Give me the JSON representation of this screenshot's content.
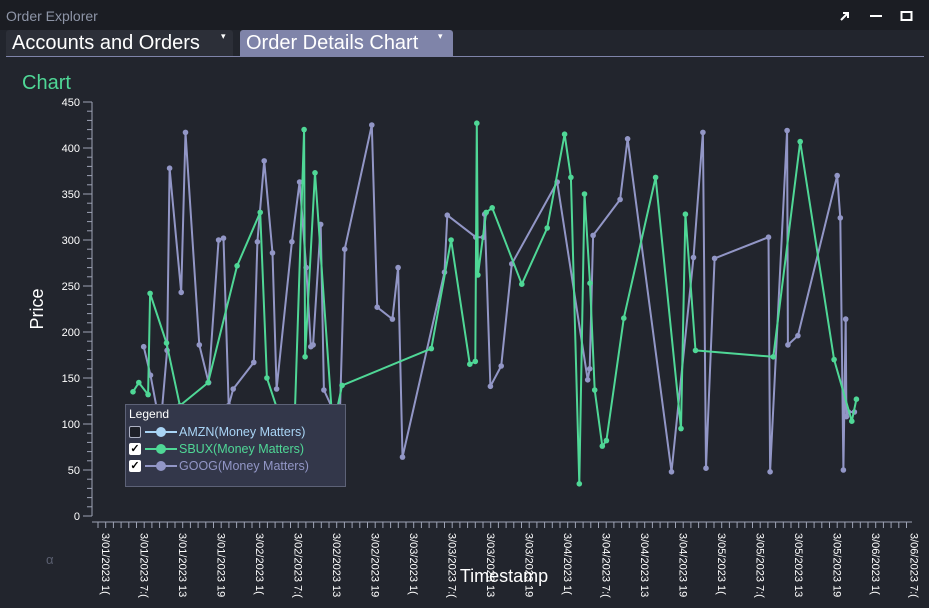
{
  "window": {
    "title": "Order Explorer"
  },
  "window_controls": {
    "popout_icon": "arrow-up-right-icon",
    "minimize_icon": "minimize-icon",
    "maximize_icon": "maximize-icon"
  },
  "tabs": [
    {
      "label": "Accounts and Orders",
      "caret": "▾",
      "active": false
    },
    {
      "label": "Order Details Chart",
      "caret": "▾",
      "active": true
    }
  ],
  "panel": {
    "title": "Chart",
    "title_color": "#4fd796",
    "corner_glyph": "α"
  },
  "legend": {
    "title": "Legend",
    "items": [
      {
        "label": "AMZN(Money Matters)",
        "checked": false,
        "color": "#a9d4f5"
      },
      {
        "label": "SBUX(Money Matters)",
        "checked": true,
        "color": "#4fd796"
      },
      {
        "label": "GOOG(Money Matters)",
        "checked": true,
        "color": "#9296c6"
      }
    ]
  },
  "chart_data": {
    "type": "line",
    "xlabel": "Timestamp",
    "ylabel": "Price",
    "ylim": [
      0,
      450
    ],
    "yticks": [
      0,
      50,
      100,
      150,
      200,
      250,
      300,
      350,
      400,
      450
    ],
    "xlim": [
      0,
      5
    ],
    "xtick_labels": [
      "3/01/2023 1(",
      "3/01/2023 7:(",
      "3/01/2023 13",
      "3/01/2023 19",
      "3/02/2023 1(",
      "3/02/2023 7:(",
      "3/02/2023 13",
      "3/02/2023 19",
      "3/03/2023 1(",
      "3/03/2023 7:(",
      "3/03/2023 13",
      "3/03/2023 19",
      "3/04/2023 1(",
      "3/04/2023 7:(",
      "3/04/2023 13",
      "3/04/2023 19",
      "3/05/2023 1(",
      "3/05/2023 7:(",
      "3/05/2023 13",
      "3/05/2023 19",
      "3/06/2023 1(",
      "3/06/2023 7:("
    ],
    "grid": false,
    "legend_position": "bottom-left",
    "series": [
      {
        "name": "SBUX(Money Matters)",
        "color": "#4fd796",
        "points": [
          [
            0.227,
            135
          ],
          [
            0.265,
            145
          ],
          [
            0.325,
            132
          ],
          [
            0.338,
            242
          ],
          [
            0.445,
            188
          ],
          [
            0.532,
            120
          ],
          [
            0.715,
            145
          ],
          [
            0.903,
            272
          ],
          [
            1.053,
            330
          ],
          [
            1.097,
            150
          ],
          [
            1.226,
            85
          ],
          [
            1.264,
            40
          ],
          [
            1.272,
            80
          ],
          [
            1.338,
            420
          ],
          [
            1.345,
            173
          ],
          [
            1.409,
            373
          ],
          [
            1.525,
            95
          ],
          [
            1.585,
            142
          ],
          [
            2.164,
            182
          ],
          [
            2.293,
            300
          ],
          [
            2.414,
            165
          ],
          [
            2.45,
            168
          ],
          [
            2.46,
            427
          ],
          [
            2.467,
            262
          ],
          [
            2.521,
            330
          ],
          [
            2.56,
            335
          ],
          [
            2.752,
            252
          ],
          [
            2.917,
            313
          ],
          [
            3.03,
            415
          ],
          [
            3.071,
            368
          ],
          [
            3.125,
            35
          ],
          [
            3.159,
            350
          ],
          [
            3.195,
            253
          ],
          [
            3.225,
            137
          ],
          [
            3.275,
            76
          ],
          [
            3.301,
            82
          ],
          [
            3.414,
            215
          ],
          [
            3.621,
            368
          ],
          [
            3.786,
            95
          ],
          [
            3.814,
            328
          ],
          [
            3.88,
            180
          ],
          [
            4.385,
            173
          ],
          [
            4.56,
            407
          ],
          [
            4.78,
            170
          ],
          [
            4.895,
            103
          ],
          [
            4.925,
            127
          ]
        ]
      },
      {
        "name": "GOOG(Money Matters)",
        "color": "#9296c6",
        "points": [
          [
            0.297,
            184
          ],
          [
            0.341,
            153
          ],
          [
            0.405,
            96
          ],
          [
            0.449,
            180
          ],
          [
            0.465,
            378
          ],
          [
            0.54,
            243
          ],
          [
            0.568,
            417
          ],
          [
            0.658,
            186
          ],
          [
            0.718,
            145
          ],
          [
            0.783,
            300
          ],
          [
            0.815,
            302
          ],
          [
            0.849,
            120
          ],
          [
            0.878,
            138
          ],
          [
            1.012,
            167
          ],
          [
            1.035,
            298
          ],
          [
            1.079,
            386
          ],
          [
            1.133,
            286
          ],
          [
            1.16,
            138
          ],
          [
            1.259,
            298
          ],
          [
            1.309,
            363
          ],
          [
            1.352,
            270
          ],
          [
            1.382,
            184
          ],
          [
            1.397,
            186
          ],
          [
            1.446,
            317
          ],
          [
            1.467,
            137
          ],
          [
            1.569,
            100
          ],
          [
            1.602,
            290
          ],
          [
            1.778,
            425
          ],
          [
            1.813,
            227
          ],
          [
            1.912,
            214
          ],
          [
            1.949,
            270
          ],
          [
            1.977,
            64
          ],
          [
            2.25,
            265
          ],
          [
            2.268,
            327
          ],
          [
            2.453,
            303
          ],
          [
            2.503,
            303
          ],
          [
            2.511,
            328
          ],
          [
            2.548,
            141
          ],
          [
            2.618,
            163
          ],
          [
            2.687,
            274
          ],
          [
            2.982,
            363
          ],
          [
            3.18,
            148
          ],
          [
            3.193,
            160
          ],
          [
            3.215,
            305
          ],
          [
            3.39,
            344
          ],
          [
            3.439,
            410
          ],
          [
            3.724,
            48
          ],
          [
            3.867,
            281
          ],
          [
            3.928,
            417
          ],
          [
            3.948,
            52
          ],
          [
            4.004,
            280
          ],
          [
            4.354,
            303
          ],
          [
            4.364,
            48
          ],
          [
            4.475,
            419
          ],
          [
            4.48,
            186
          ],
          [
            4.545,
            196
          ],
          [
            4.8,
            370
          ],
          [
            4.82,
            324
          ],
          [
            4.84,
            50
          ],
          [
            4.855,
            214
          ],
          [
            4.86,
            108
          ],
          [
            4.873,
            113
          ],
          [
            4.912,
            113
          ]
        ]
      }
    ]
  }
}
